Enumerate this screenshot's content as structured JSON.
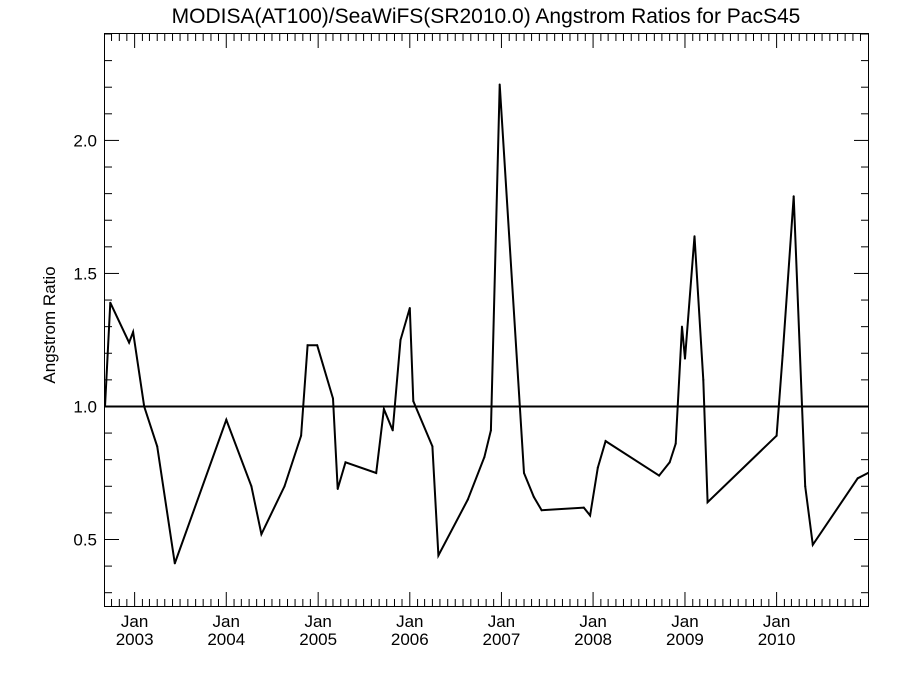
{
  "chart_data": {
    "type": "line",
    "title": "MODISA(AT100)/SeaWiFS(SR2010.0)  Angstrom Ratios for PacS45",
    "xlabel": "",
    "ylabel": "Angstrom Ratio",
    "xlim": [
      "2002-09-05",
      "2010-12-31"
    ],
    "ylim": [
      0.25,
      2.4
    ],
    "x_ticks": [
      {
        "date": "2003-01-01",
        "month": "Jan",
        "year": "2003"
      },
      {
        "date": "2004-01-01",
        "month": "Jan",
        "year": "2004"
      },
      {
        "date": "2005-01-01",
        "month": "Jan",
        "year": "2005"
      },
      {
        "date": "2006-01-01",
        "month": "Jan",
        "year": "2006"
      },
      {
        "date": "2007-01-01",
        "month": "Jan",
        "year": "2007"
      },
      {
        "date": "2008-01-01",
        "month": "Jan",
        "year": "2008"
      },
      {
        "date": "2009-01-01",
        "month": "Jan",
        "year": "2009"
      },
      {
        "date": "2010-01-01",
        "month": "Jan",
        "year": "2010"
      }
    ],
    "y_ticks": [
      {
        "value": 0.5,
        "label": "0.5"
      },
      {
        "value": 1.0,
        "label": "1.0"
      },
      {
        "value": 1.5,
        "label": "1.5"
      },
      {
        "value": 2.0,
        "label": "2.0"
      }
    ],
    "y_minor_step": 0.1,
    "x_minor": "monthly",
    "reference_line": 1.0,
    "grid": false,
    "series": [
      {
        "values": [
          [
            "2002-09-05",
            1.0
          ],
          [
            "2002-09-26",
            1.39
          ],
          [
            "2002-12-10",
            1.24
          ],
          [
            "2002-12-26",
            1.28
          ],
          [
            "2003-02-08",
            1.0
          ],
          [
            "2003-04-01",
            0.85
          ],
          [
            "2003-06-10",
            0.41
          ],
          [
            "2004-01-01",
            0.95
          ],
          [
            "2004-04-10",
            0.7
          ],
          [
            "2004-05-20",
            0.52
          ],
          [
            "2004-08-20",
            0.7
          ],
          [
            "2004-10-25",
            0.89
          ],
          [
            "2004-11-20",
            1.23
          ],
          [
            "2004-12-28",
            1.23
          ],
          [
            "2005-03-01",
            1.03
          ],
          [
            "2005-03-20",
            0.69
          ],
          [
            "2005-04-20",
            0.79
          ],
          [
            "2005-08-20",
            0.75
          ],
          [
            "2005-09-20",
            0.99
          ],
          [
            "2005-10-25",
            0.91
          ],
          [
            "2005-11-25",
            1.25
          ],
          [
            "2006-01-01",
            1.37
          ],
          [
            "2006-01-15",
            1.02
          ],
          [
            "2006-04-01",
            0.85
          ],
          [
            "2006-04-25",
            0.44
          ],
          [
            "2006-08-20",
            0.65
          ],
          [
            "2006-10-25",
            0.81
          ],
          [
            "2006-11-20",
            0.91
          ],
          [
            "2006-12-25",
            2.21
          ],
          [
            "2007-04-01",
            0.75
          ],
          [
            "2007-05-10",
            0.66
          ],
          [
            "2007-06-10",
            0.61
          ],
          [
            "2007-11-25",
            0.62
          ],
          [
            "2007-12-20",
            0.59
          ],
          [
            "2008-01-20",
            0.77
          ],
          [
            "2008-02-20",
            0.87
          ],
          [
            "2008-09-20",
            0.74
          ],
          [
            "2008-11-01",
            0.79
          ],
          [
            "2008-11-25",
            0.86
          ],
          [
            "2008-12-20",
            1.3
          ],
          [
            "2009-01-01",
            1.18
          ],
          [
            "2009-02-08",
            1.64
          ],
          [
            "2009-03-15",
            1.1
          ],
          [
            "2009-04-01",
            0.64
          ],
          [
            "2010-01-01",
            0.89
          ],
          [
            "2010-01-25",
            1.19
          ],
          [
            "2010-03-10",
            1.79
          ],
          [
            "2010-04-25",
            0.7
          ],
          [
            "2010-05-25",
            0.48
          ],
          [
            "2010-11-20",
            0.73
          ],
          [
            "2010-12-31",
            0.75
          ]
        ]
      }
    ]
  }
}
